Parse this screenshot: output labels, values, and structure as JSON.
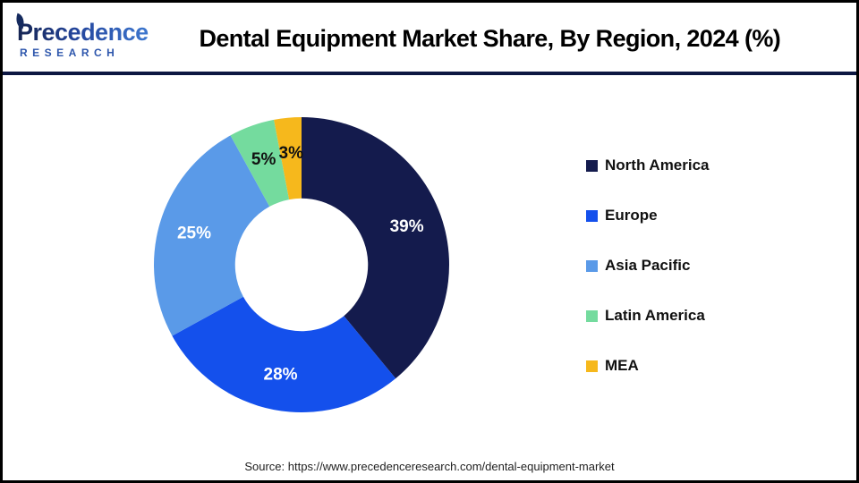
{
  "header": {
    "logo": {
      "name": "Precedence",
      "subtitle": "RESEARCH"
    },
    "title": "Dental Equipment Market Share, By Region, 2024 (%)"
  },
  "chart_data": {
    "type": "pie",
    "donut": true,
    "title": "Dental Equipment Market Share, By Region, 2024 (%)",
    "categories": [
      "North America",
      "Europe",
      "Asia Pacific",
      "Latin America",
      "MEA"
    ],
    "values": [
      39,
      28,
      25,
      5,
      3
    ],
    "labels": [
      "39%",
      "28%",
      "25%",
      "5%",
      "3%"
    ],
    "unit": "%",
    "colors": [
      "#141b4d",
      "#1450ec",
      "#5a9ae8",
      "#74db9e",
      "#f6b81c"
    ],
    "label_colors": [
      "#ffffff",
      "#ffffff",
      "#ffffff",
      "#111111",
      "#111111"
    ],
    "start_angle_deg": 0,
    "direction": "clockwise",
    "legend_position": "right",
    "hole_ratio": 0.45
  },
  "footer": {
    "source": "Source: https://www.precedenceresearch.com/dental-equipment-market"
  }
}
